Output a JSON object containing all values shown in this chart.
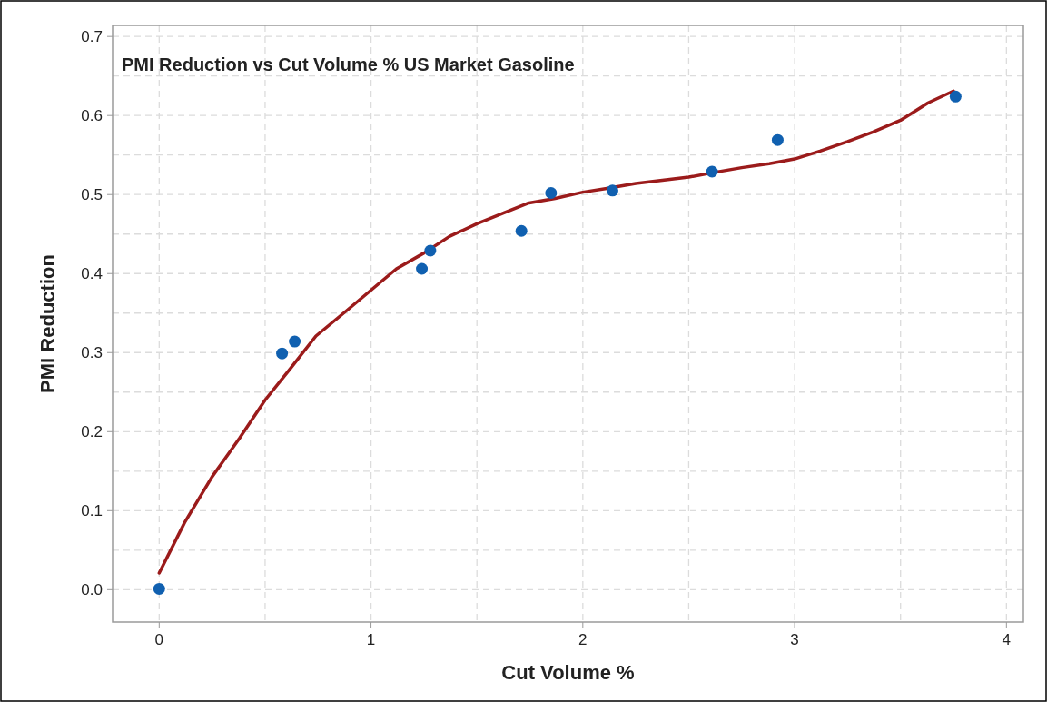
{
  "chart_data": {
    "type": "scatter",
    "title": "PMI Reduction vs Cut Volume % US Market Gasoline",
    "xlabel": "Cut Volume %",
    "ylabel": "PMI Reduction",
    "xlim": [
      -0.22,
      4.08
    ],
    "ylim": [
      -0.041,
      0.714
    ],
    "xticks": [
      0,
      {
        "value": 0.5,
        "label": null
      },
      1,
      {
        "value": 1.5,
        "label": null
      },
      2,
      {
        "value": 2.5,
        "label": null
      },
      3,
      {
        "value": 3.5,
        "label": null
      },
      4
    ],
    "yticks": [
      {
        "value": 0,
        "label": "0.0"
      },
      {
        "value": 0.05,
        "label": null
      },
      0.1,
      {
        "value": 0.15,
        "label": null
      },
      0.2,
      {
        "value": 0.25,
        "label": null
      },
      0.3,
      {
        "value": 0.35,
        "label": null
      },
      0.4,
      {
        "value": 0.45,
        "label": null
      },
      0.5,
      {
        "value": 0.55,
        "label": null
      },
      0.6,
      {
        "value": 0.65,
        "label": null
      },
      0.7
    ],
    "grid": true,
    "series": [
      {
        "marker": "circle",
        "color": "#1060b0",
        "x": [
          0,
          0.58,
          0.64,
          1.24,
          1.28,
          1.71,
          1.85,
          2.14,
          2.61,
          2.92,
          3.76
        ],
        "values": [
          0.001,
          0.299,
          0.314,
          0.406,
          0.429,
          0.454,
          0.502,
          0.505,
          0.529,
          0.569,
          0.624
        ]
      },
      {
        "type": "line",
        "color": "#9b1b1b",
        "line_style": "solid",
        "x": [
          0,
          0.12,
          0.25,
          0.38,
          0.5,
          0.62,
          0.74,
          0.88,
          1.0,
          1.12,
          1.25,
          1.37,
          1.5,
          1.63,
          1.74,
          1.87,
          2.0,
          2.12,
          2.25,
          2.5,
          2.62,
          2.75,
          2.88,
          3.0,
          3.12,
          3.25,
          3.37,
          3.5,
          3.63,
          3.75
        ],
        "values": [
          0.021,
          0.085,
          0.143,
          0.192,
          0.24,
          0.28,
          0.321,
          0.352,
          0.379,
          0.406,
          0.426,
          0.447,
          0.463,
          0.477,
          0.489,
          0.495,
          0.503,
          0.508,
          0.514,
          0.522,
          0.528,
          0.534,
          0.539,
          0.545,
          0.555,
          0.567,
          0.579,
          0.594,
          0.616,
          0.631
        ]
      }
    ]
  }
}
